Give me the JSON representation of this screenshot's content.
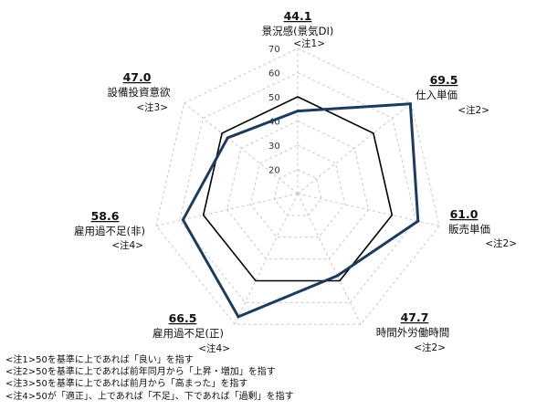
{
  "chart_data": {
    "type": "radar",
    "axes": [
      {
        "value": "44.1",
        "label": "景況感(景気DI)",
        "note": "<注1>"
      },
      {
        "value": "69.5",
        "label": "仕入単価",
        "note": "<注2>"
      },
      {
        "value": "61.0",
        "label": "販売単価",
        "note": "<注2>"
      },
      {
        "value": "47.7",
        "label": "時間外労働時間",
        "note": "<注2>"
      },
      {
        "value": "66.5",
        "label": "雇用過不足(正)",
        "note": "<注4>"
      },
      {
        "value": "58.6",
        "label": "雇用過不足(非)",
        "note": "<注4>"
      },
      {
        "value": "47.0",
        "label": "設備投資意欲",
        "note": "<注3>"
      }
    ],
    "series": [
      {
        "values": [
          44.1,
          69.5,
          61.0,
          47.7,
          66.5,
          58.6,
          47.0
        ],
        "color": "#1f3b5c"
      }
    ],
    "reference": {
      "value": 50,
      "color": "#000000"
    },
    "ticks": [
      20,
      30,
      40,
      50,
      60,
      70
    ],
    "rlim": [
      10,
      70
    ],
    "grid": true
  },
  "notes": [
    "<注1>50を基準に上であれば「良い」を指す",
    "<注2>50を基準に上であれば前年同月から「上昇・増加」を指す",
    "<注3>50を基準に上であれば前月から「高まった」を指す",
    "<注4>50が「適正」、上であれば「不足」、下であれば「過剰」を指す"
  ]
}
